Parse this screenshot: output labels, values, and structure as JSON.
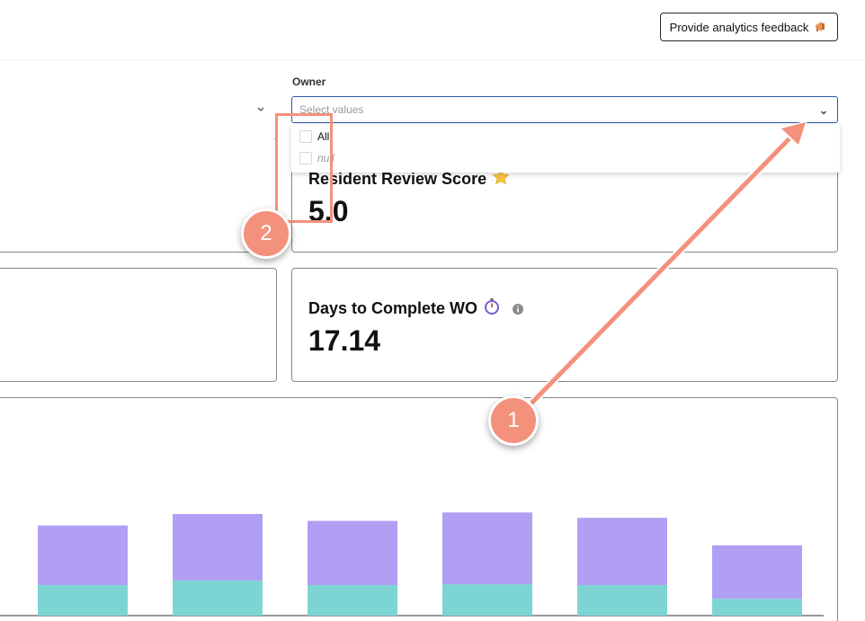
{
  "header": {
    "feedback_label": "Provide analytics feedback",
    "feedback_icon": "megaphone-icon"
  },
  "filters": {
    "owner": {
      "label": "Owner",
      "placeholder": "Select values",
      "options": [
        {
          "label": "All",
          "checked": false
        },
        {
          "label": "null",
          "checked": false
        }
      ]
    }
  },
  "metrics": {
    "review": {
      "title": "Resident Review Score",
      "icon": "star-icon",
      "value": "5.0"
    },
    "days": {
      "title": "Days to Complete WO",
      "icon": "stopwatch-icon",
      "info_icon": "info-icon",
      "value": "17.14"
    }
  },
  "chart_data": {
    "type": "bar",
    "stacked": true,
    "categories": [
      "",
      "",
      "",
      "",
      "",
      ""
    ],
    "series": [
      {
        "color": "#7dd5d3",
        "values": [
          40,
          46,
          40,
          41,
          40,
          22
        ]
      },
      {
        "color": "#b19ff4",
        "values": [
          78,
          87,
          84,
          94,
          88,
          70
        ]
      }
    ],
    "grid": false
  },
  "annotations": {
    "step_1": "1",
    "step_2": "2",
    "accent_color": "#f3917c"
  }
}
